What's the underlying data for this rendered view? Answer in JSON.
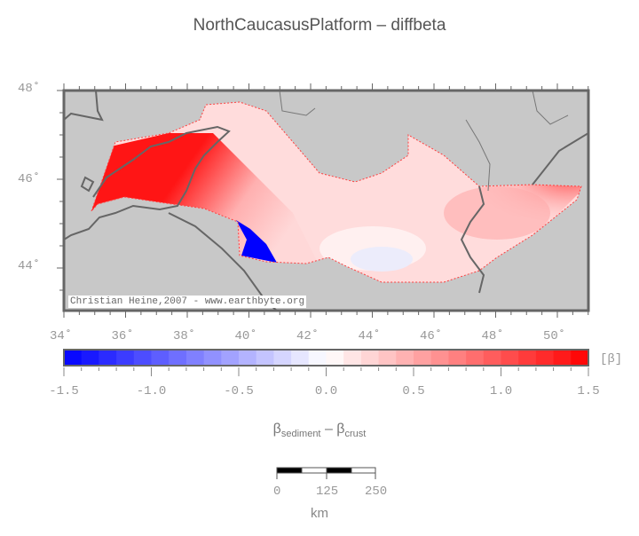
{
  "title": "NorthCaucasusPlatform – diffbeta",
  "map": {
    "lon_ticks": [
      "34˚",
      "36˚",
      "38˚",
      "40˚",
      "42˚",
      "44˚",
      "46˚",
      "48˚",
      "50˚"
    ],
    "lat_ticks": [
      "48˚",
      "46˚",
      "44˚"
    ],
    "credit": "Christian Heine,2007 - www.earthbyte.org",
    "land_color": "#c8c8c8",
    "coastline_color": "#666666"
  },
  "colorbar": {
    "min": -1.5,
    "max": 1.5,
    "step": 0.1,
    "low_color": "#0000ff",
    "mid_color": "#ffffff",
    "high_color": "#ff0000",
    "tick_labels": [
      "-1.5",
      "-1.0",
      "-0.5",
      "0.0",
      "0.5",
      "1.0",
      "1.5"
    ],
    "unit": "[β]",
    "label_main": "β",
    "label_sub1": "sediment",
    "label_mid": " – β",
    "label_sub2": "crust"
  },
  "scalebar": {
    "labels": [
      "0",
      "125",
      "250"
    ],
    "unit": "km"
  }
}
